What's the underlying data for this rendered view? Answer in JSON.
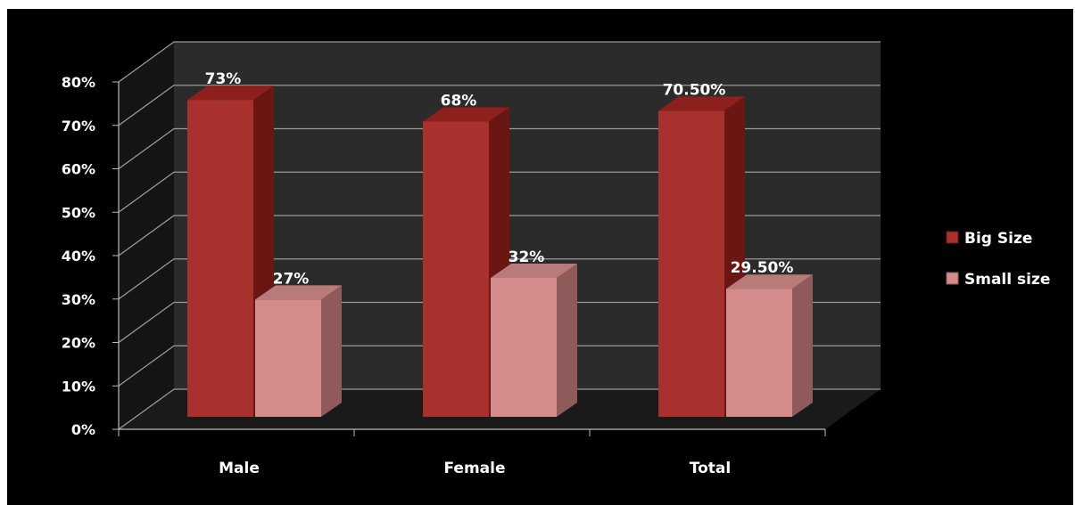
{
  "chart_data": {
    "type": "bar",
    "title": "",
    "xlabel": "",
    "ylabel": "",
    "categories": [
      "Male",
      "Female",
      "Total"
    ],
    "series": [
      {
        "name": "Big Size",
        "values": [
          73,
          68,
          70.5
        ],
        "labels": [
          "73%",
          "68%",
          "70.50%"
        ],
        "color": "#a8302d",
        "side_color": "#6b1613",
        "top_color": "#8d201c"
      },
      {
        "name": "Small size",
        "values": [
          27,
          32,
          29.5
        ],
        "labels": [
          "27%",
          "32%",
          "29.50%"
        ],
        "color": "#d38b8b",
        "side_color": "#8f5a5a",
        "top_color": "#b97a7a"
      }
    ],
    "ylim": [
      0,
      80
    ],
    "yticks": [
      "0%",
      "10%",
      "20%",
      "30%",
      "40%",
      "50%",
      "60%",
      "70%",
      "80%"
    ],
    "grid": true,
    "legend": "right",
    "colors": {
      "background": "#000000",
      "wall": "#2b2b2b",
      "floor": "#1a1a1a",
      "grid": "#9a9a9a"
    }
  }
}
